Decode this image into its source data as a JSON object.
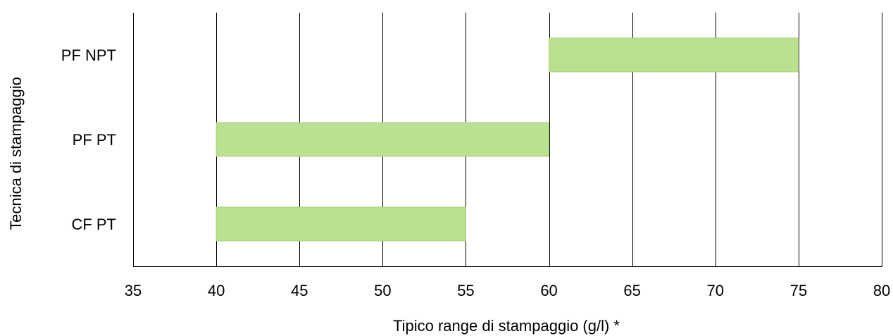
{
  "chart_data": {
    "type": "bar",
    "orientation": "horizontal",
    "title": "",
    "xlabel": "Tipico range di stampaggio (g/l) *",
    "ylabel": "Tecnica di stampaggio",
    "xlim": [
      35,
      80
    ],
    "xticks": [
      35,
      40,
      45,
      50,
      55,
      60,
      65,
      70,
      75,
      80
    ],
    "x_tick_labels": [
      "35",
      "40",
      "45",
      "50",
      "55",
      "60",
      "65",
      "70",
      "75",
      "80"
    ],
    "grid": "vertical",
    "categories": [
      "PF NPT",
      "PF PT",
      "CF PT"
    ],
    "ranges": [
      {
        "category": "PF NPT",
        "start": 60,
        "end": 75
      },
      {
        "category": "PF PT",
        "start": 40,
        "end": 60
      },
      {
        "category": "CF PT",
        "start": 40,
        "end": 55
      }
    ],
    "bar_color": "#bbe090",
    "bar_edge_color": "#a8cf7c",
    "grid_color": "#000000"
  }
}
